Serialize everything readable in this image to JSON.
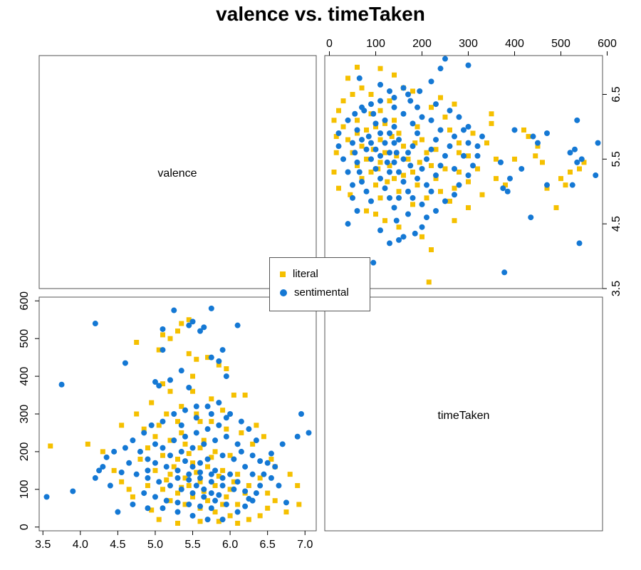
{
  "chart_data": {
    "type": "scatter",
    "title": "valence vs. timeTaken",
    "variables": [
      "valence",
      "timeTaken"
    ],
    "panels": [
      {
        "position": "top-left",
        "kind": "label",
        "label": "valence"
      },
      {
        "position": "top-right",
        "kind": "scatter",
        "x": "timeTaken",
        "y": "valence",
        "xlim": [
          -10,
          590
        ],
        "ylim": [
          3.5,
          7.1
        ],
        "xticks": [
          "0",
          "100",
          "200",
          "300",
          "400",
          "500",
          "600"
        ],
        "yticks": [
          "3.5",
          "4.5",
          "5.5",
          "6.5"
        ]
      },
      {
        "position": "bottom-left",
        "kind": "scatter",
        "x": "valence",
        "y": "timeTaken",
        "xlim": [
          3.45,
          7.15
        ],
        "ylim": [
          -10,
          610
        ],
        "xticks": [
          "3.5",
          "4.0",
          "4.5",
          "5.0",
          "5.5",
          "6.0",
          "6.5",
          "7.0"
        ],
        "yticks": [
          "0",
          "100",
          "200",
          "300",
          "400",
          "500",
          "600"
        ]
      },
      {
        "position": "bottom-right",
        "kind": "label",
        "label": "timeTaken"
      }
    ],
    "legend": {
      "placement": "center",
      "entries": [
        {
          "label": "literal",
          "marker": "square",
          "color": "#F5C000"
        },
        {
          "label": "sentimental",
          "marker": "circle",
          "color": "#1478D4"
        }
      ]
    },
    "series": [
      {
        "name": "literal",
        "color": "#F5C000",
        "marker": "square",
        "points": [
          [
            5.05,
            470
          ],
          [
            5.1,
            510
          ],
          [
            5.3,
            520
          ],
          [
            5.35,
            540
          ],
          [
            5.45,
            550
          ],
          [
            5.2,
            500
          ],
          [
            4.75,
            490
          ],
          [
            5.55,
            445
          ],
          [
            5.7,
            450
          ],
          [
            5.85,
            430
          ],
          [
            5.5,
            400
          ],
          [
            5.1,
            380
          ],
          [
            5.2,
            360
          ],
          [
            5.95,
            420
          ],
          [
            6.05,
            350
          ],
          [
            6.2,
            350
          ],
          [
            6.35,
            270
          ],
          [
            6.45,
            240
          ],
          [
            6.55,
            180
          ],
          [
            6.6,
            160
          ],
          [
            6.8,
            140
          ],
          [
            6.9,
            110
          ],
          [
            6.92,
            60
          ],
          [
            6.75,
            40
          ],
          [
            6.5,
            50
          ],
          [
            6.4,
            30
          ],
          [
            6.25,
            20
          ],
          [
            6.1,
            10
          ],
          [
            5.85,
            15
          ],
          [
            5.6,
            15
          ],
          [
            5.3,
            10
          ],
          [
            5.05,
            20
          ],
          [
            4.95,
            45
          ],
          [
            4.7,
            80
          ],
          [
            4.55,
            120
          ],
          [
            4.45,
            150
          ],
          [
            4.3,
            200
          ],
          [
            4.1,
            220
          ],
          [
            3.6,
            215
          ],
          [
            4.55,
            270
          ],
          [
            4.75,
            300
          ],
          [
            4.95,
            330
          ],
          [
            5.15,
            300
          ],
          [
            5.35,
            320
          ],
          [
            5.55,
            300
          ],
          [
            5.75,
            280
          ],
          [
            5.95,
            260
          ],
          [
            6.15,
            250
          ],
          [
            6.3,
            220
          ],
          [
            5.0,
            240
          ],
          [
            5.2,
            230
          ],
          [
            5.4,
            220
          ],
          [
            5.6,
            210
          ],
          [
            5.8,
            200
          ],
          [
            6.0,
            190
          ],
          [
            5.1,
            190
          ],
          [
            5.3,
            180
          ],
          [
            5.5,
            170
          ],
          [
            5.7,
            160
          ],
          [
            5.9,
            150
          ],
          [
            6.1,
            140
          ],
          [
            5.0,
            150
          ],
          [
            5.2,
            140
          ],
          [
            5.4,
            130
          ],
          [
            5.6,
            120
          ],
          [
            5.8,
            110
          ],
          [
            6.0,
            100
          ],
          [
            6.2,
            90
          ],
          [
            4.9,
            110
          ],
          [
            5.1,
            100
          ],
          [
            5.3,
            90
          ],
          [
            5.5,
            80
          ],
          [
            5.7,
            70
          ],
          [
            5.9,
            60
          ],
          [
            6.1,
            60
          ],
          [
            5.2,
            70
          ],
          [
            5.4,
            60
          ],
          [
            5.6,
            50
          ],
          [
            5.8,
            40
          ],
          [
            6.0,
            30
          ],
          [
            4.8,
            180
          ],
          [
            4.9,
            210
          ],
          [
            5.35,
            250
          ],
          [
            5.65,
            230
          ],
          [
            5.45,
            195
          ],
          [
            5.75,
            185
          ],
          [
            5.25,
            160
          ],
          [
            5.55,
            145
          ],
          [
            5.85,
            135
          ],
          [
            6.05,
            120
          ],
          [
            5.15,
            125
          ],
          [
            5.45,
            110
          ],
          [
            5.65,
            95
          ],
          [
            5.35,
            105
          ],
          [
            5.95,
            80
          ],
          [
            6.25,
            110
          ],
          [
            6.4,
            130
          ],
          [
            6.5,
            90
          ],
          [
            5.6,
            280
          ],
          [
            5.75,
            340
          ],
          [
            5.5,
            360
          ],
          [
            5.3,
            280
          ],
          [
            5.9,
            310
          ],
          [
            4.85,
            260
          ],
          [
            5.05,
            270
          ],
          [
            6.6,
            70
          ],
          [
            4.65,
            100
          ],
          [
            5.45,
            460
          ]
        ]
      },
      {
        "name": "sentimental",
        "color": "#1478D4",
        "marker": "circle",
        "points": [
          [
            5.25,
            575
          ],
          [
            5.75,
            580
          ],
          [
            5.5,
            545
          ],
          [
            5.65,
            530
          ],
          [
            6.1,
            535
          ],
          [
            5.45,
            535
          ],
          [
            5.6,
            520
          ],
          [
            4.2,
            540
          ],
          [
            5.1,
            525
          ],
          [
            5.9,
            470
          ],
          [
            5.1,
            470
          ],
          [
            5.75,
            450
          ],
          [
            5.85,
            440
          ],
          [
            4.6,
            435
          ],
          [
            5.35,
            415
          ],
          [
            5.95,
            400
          ],
          [
            5.0,
            385
          ],
          [
            5.05,
            375
          ],
          [
            5.2,
            390
          ],
          [
            5.45,
            370
          ],
          [
            3.75,
            378
          ],
          [
            6.95,
            300
          ],
          [
            7.05,
            250
          ],
          [
            6.9,
            240
          ],
          [
            6.7,
            220
          ],
          [
            6.55,
            195
          ],
          [
            6.5,
            170
          ],
          [
            6.6,
            160
          ],
          [
            6.45,
            140
          ],
          [
            6.4,
            110
          ],
          [
            6.35,
            90
          ],
          [
            6.3,
            70
          ],
          [
            6.2,
            55
          ],
          [
            6.1,
            40
          ],
          [
            5.9,
            20
          ],
          [
            5.7,
            20
          ],
          [
            5.5,
            30
          ],
          [
            5.3,
            40
          ],
          [
            5.1,
            50
          ],
          [
            4.9,
            50
          ],
          [
            4.7,
            60
          ],
          [
            4.5,
            40
          ],
          [
            3.55,
            80
          ],
          [
            3.9,
            95
          ],
          [
            4.2,
            130
          ],
          [
            4.3,
            160
          ],
          [
            4.35,
            185
          ],
          [
            4.45,
            200
          ],
          [
            4.6,
            210
          ],
          [
            4.7,
            230
          ],
          [
            4.85,
            250
          ],
          [
            4.95,
            270
          ],
          [
            5.1,
            280
          ],
          [
            5.25,
            300
          ],
          [
            5.4,
            310
          ],
          [
            5.55,
            320
          ],
          [
            5.7,
            320
          ],
          [
            5.85,
            330
          ],
          [
            6.0,
            300
          ],
          [
            6.15,
            280
          ],
          [
            6.25,
            260
          ],
          [
            6.35,
            230
          ],
          [
            4.8,
            200
          ],
          [
            4.9,
            180
          ],
          [
            5.0,
            170
          ],
          [
            5.15,
            160
          ],
          [
            5.3,
            150
          ],
          [
            5.45,
            140
          ],
          [
            5.6,
            130
          ],
          [
            5.75,
            120
          ],
          [
            5.9,
            110
          ],
          [
            6.05,
            100
          ],
          [
            6.2,
            95
          ],
          [
            4.75,
            140
          ],
          [
            4.9,
            130
          ],
          [
            5.05,
            120
          ],
          [
            5.2,
            110
          ],
          [
            5.35,
            100
          ],
          [
            5.5,
            90
          ],
          [
            5.65,
            80
          ],
          [
            5.8,
            70
          ],
          [
            5.95,
            60
          ],
          [
            4.85,
            90
          ],
          [
            5.0,
            80
          ],
          [
            5.15,
            70
          ],
          [
            5.3,
            65
          ],
          [
            5.45,
            60
          ],
          [
            5.6,
            55
          ],
          [
            5.75,
            50
          ],
          [
            5.35,
            200
          ],
          [
            5.5,
            210
          ],
          [
            5.65,
            220
          ],
          [
            5.8,
            230
          ],
          [
            5.95,
            240
          ],
          [
            6.1,
            220
          ],
          [
            5.25,
            230
          ],
          [
            5.4,
            240
          ],
          [
            5.55,
            250
          ],
          [
            5.7,
            260
          ],
          [
            5.85,
            270
          ],
          [
            6.05,
            180
          ],
          [
            6.2,
            160
          ],
          [
            6.3,
            140
          ],
          [
            5.6,
            170
          ],
          [
            5.7,
            180
          ],
          [
            5.5,
            160
          ],
          [
            5.8,
            150
          ],
          [
            5.4,
            175
          ],
          [
            5.9,
            190
          ],
          [
            6.0,
            140
          ],
          [
            6.1,
            120
          ],
          [
            5.2,
            190
          ],
          [
            5.1,
            210
          ],
          [
            5.0,
            220
          ],
          [
            4.9,
            150
          ],
          [
            5.55,
            110
          ],
          [
            5.65,
            100
          ],
          [
            5.75,
            90
          ],
          [
            5.85,
            85
          ],
          [
            6.25,
            75
          ],
          [
            4.65,
            170
          ],
          [
            4.55,
            145
          ],
          [
            4.4,
            110
          ],
          [
            4.25,
            150
          ],
          [
            6.4,
            175
          ],
          [
            6.55,
            130
          ],
          [
            6.65,
            110
          ],
          [
            6.75,
            65
          ],
          [
            5.3,
            130
          ],
          [
            5.45,
            125
          ],
          [
            5.6,
            145
          ],
          [
            5.75,
            140
          ],
          [
            5.9,
            130
          ],
          [
            5.35,
            270
          ],
          [
            5.55,
            290
          ],
          [
            5.75,
            300
          ],
          [
            5.95,
            290
          ],
          [
            6.15,
            200
          ],
          [
            6.3,
            190
          ]
        ]
      }
    ]
  }
}
